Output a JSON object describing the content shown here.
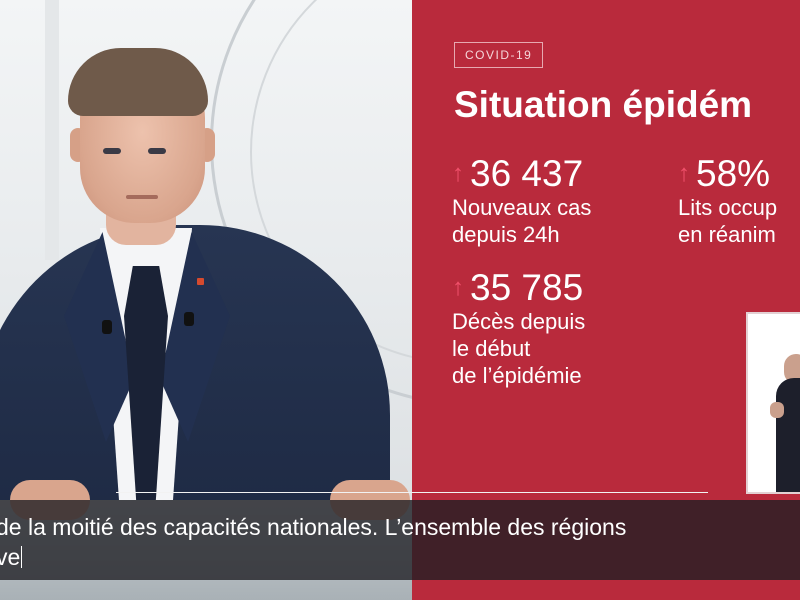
{
  "panel": {
    "tag": "COVID-19",
    "headline": "Situation épidém",
    "stats": [
      {
        "value": "36 437",
        "desc": "Nouveaux cas\ndepuis 24h",
        "arrow": "↑"
      },
      {
        "value": "58%",
        "desc": "Lits occup\nen réanim",
        "arrow": "↑"
      },
      {
        "value": "35 785",
        "desc": "Décès depuis\nle début\nde l’épidémie",
        "arrow": "↑"
      }
    ]
  },
  "subtitle": {
    "line1": "de la moitié des capacités nationales. L’ensemble des régions",
    "line2": "ve"
  },
  "colors": {
    "panel": "#b92a3c",
    "arrow": "#f0506a",
    "suit": "#1e2a44"
  }
}
